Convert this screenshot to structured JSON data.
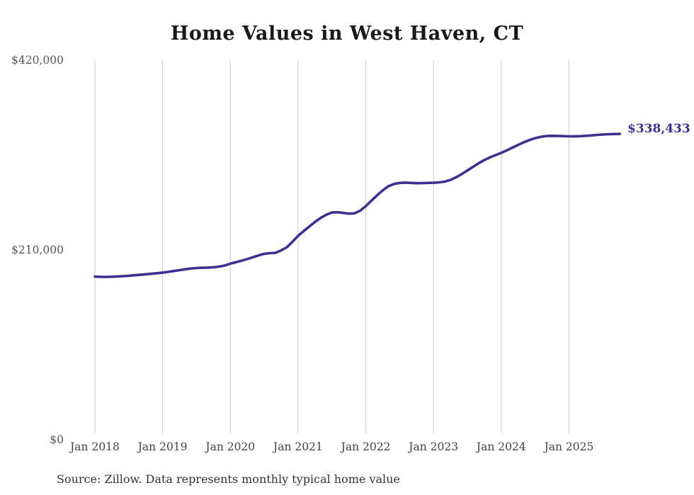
{
  "chart": {
    "title": "Home Values in West Haven, CT",
    "end_label": "$338,433",
    "source_note": "Source: Zillow. Data represents monthly typical home value"
  },
  "chart_data": {
    "type": "line",
    "title": "Home Values in West Haven, CT",
    "series_name": "Monthly typical home value",
    "x_unit": "month",
    "x_start": "Jan 2018",
    "x_end": "Oct 2025",
    "x_tick_labels": [
      "Jan 2018",
      "Jan 2019",
      "Jan 2020",
      "Jan 2021",
      "Jan 2022",
      "Jan 2023",
      "Jan 2024",
      "Jan 2025"
    ],
    "x_tick_month_indices": [
      0,
      12,
      24,
      36,
      48,
      60,
      72,
      84
    ],
    "y_ticks": [
      {
        "label": "$0",
        "value": 0
      },
      {
        "label": "$210,000",
        "value": 210000
      },
      {
        "label": "$420,000",
        "value": 420000
      }
    ],
    "ylim": [
      0,
      420000
    ],
    "grid": "vertical-only",
    "legend": "none",
    "last_value": 338433,
    "last_value_label": "$338,433",
    "values": [
      180500,
      180300,
      180200,
      180400,
      180700,
      181100,
      181500,
      182000,
      182500,
      183100,
      183700,
      184300,
      185000,
      185800,
      186700,
      187700,
      188700,
      189500,
      190000,
      190300,
      190500,
      190900,
      191600,
      192800,
      194900,
      196500,
      198200,
      200000,
      202000,
      204000,
      205800,
      206500,
      206900,
      209500,
      213000,
      219000,
      225700,
      231000,
      236000,
      241000,
      245500,
      249000,
      251500,
      251800,
      251000,
      250200,
      250500,
      253500,
      258600,
      264500,
      270500,
      276000,
      280500,
      283000,
      284200,
      284500,
      284200,
      283900,
      284000,
      284200,
      284400,
      284800,
      285600,
      287500,
      290500,
      294000,
      298000,
      302000,
      306000,
      309500,
      312500,
      315000,
      317400,
      320300,
      323300,
      326300,
      329200,
      331700,
      333700,
      335200,
      336100,
      336300,
      336200,
      336000,
      335800,
      335700,
      335900,
      336300,
      336800,
      337300,
      337800,
      338100,
      338300,
      338433
    ],
    "colors": {
      "line": "#3b3191",
      "grid": "#cccccc",
      "title": "#191919",
      "x_tick_text": "#434343",
      "y_tick_text": "#565656",
      "end_label": "#3b3191",
      "source_text": "#333333",
      "background": "#ffffff"
    }
  }
}
